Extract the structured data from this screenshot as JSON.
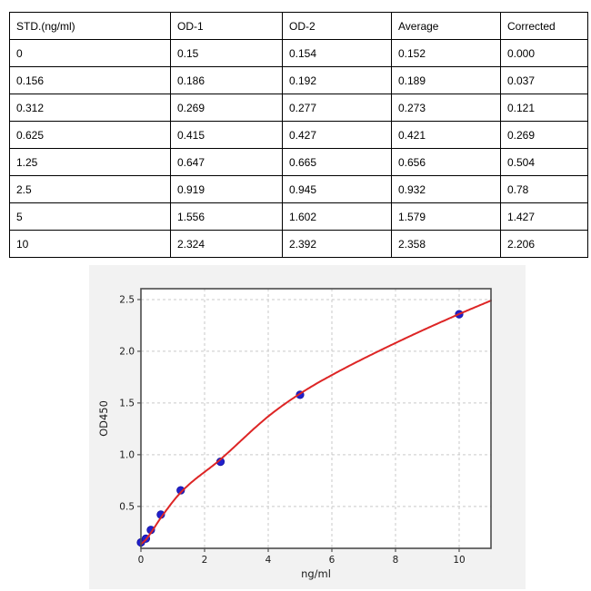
{
  "table": {
    "columns": [
      "STD.(ng/ml)",
      "OD-1",
      "OD-2",
      "Average",
      "Corrected"
    ],
    "rows": [
      [
        "0",
        "0.15",
        "0.154",
        "0.152",
        "0.000"
      ],
      [
        "0.156",
        "0.186",
        "0.192",
        "0.189",
        "0.037"
      ],
      [
        "0.312",
        "0.269",
        "0.277",
        "0.273",
        "0.121"
      ],
      [
        "0.625",
        "0.415",
        "0.427",
        "0.421",
        "0.269"
      ],
      [
        "1.25",
        "0.647",
        "0.665",
        "0.656",
        "0.504"
      ],
      [
        "2.5",
        "0.919",
        "0.945",
        "0.932",
        "0.78"
      ],
      [
        "5",
        "1.556",
        "1.602",
        "1.579",
        "1.427"
      ],
      [
        "10",
        "2.324",
        "2.392",
        "2.358",
        "2.206"
      ]
    ]
  },
  "chart_data": {
    "type": "scatter",
    "title": "",
    "xlabel": "ng/ml",
    "ylabel": "OD450",
    "xlim": [
      0,
      11
    ],
    "ylim": [
      0.095,
      2.605
    ],
    "xticks": [
      0,
      2,
      4,
      6,
      8,
      10
    ],
    "yticks": [
      0.5,
      1.0,
      1.5,
      2.0,
      2.5
    ],
    "grid": true,
    "legend": "none",
    "colors": {
      "figure_background": "#f2f2f2",
      "plot_background": "#ffffff",
      "frame": "#4d4d4d",
      "gridline": "#c9c9c9",
      "scatter": "#2120cc",
      "scatter_edge": "#14129e",
      "curve": "#dd2525"
    },
    "series": [
      {
        "name": "standard-points",
        "type": "scatter",
        "x": [
          0,
          0.156,
          0.312,
          0.625,
          1.25,
          2.5,
          5,
          10
        ],
        "y": [
          0.152,
          0.189,
          0.273,
          0.421,
          0.656,
          0.932,
          1.579,
          2.358
        ]
      },
      {
        "name": "fit-curve",
        "type": "line",
        "x": [
          0,
          0.156,
          0.312,
          0.625,
          1.25,
          2.5,
          4,
          5,
          6,
          8,
          10,
          11
        ],
        "y": [
          0.135,
          0.18,
          0.245,
          0.39,
          0.635,
          0.955,
          1.37,
          1.59,
          1.77,
          2.08,
          2.36,
          2.49
        ]
      }
    ]
  }
}
